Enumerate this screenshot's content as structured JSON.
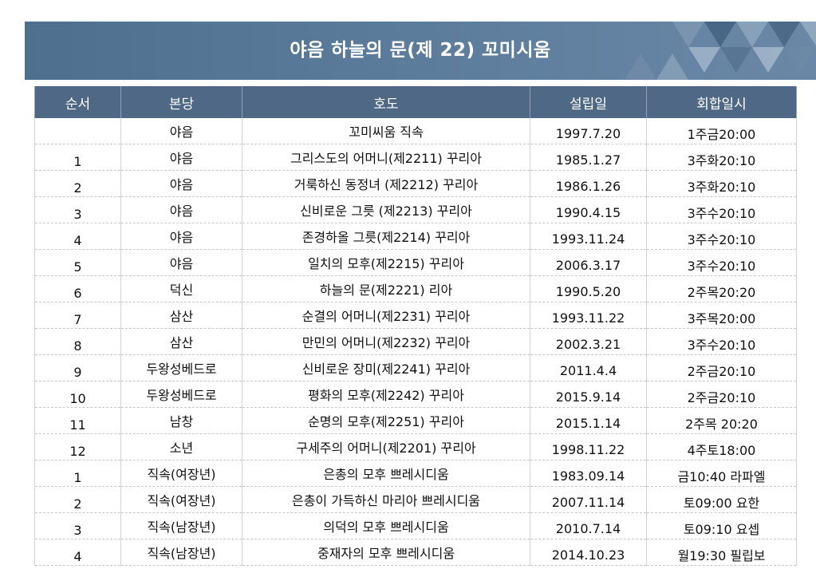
{
  "banner": {
    "title": "야음 하늘의 문(제 22) 꼬미시움"
  },
  "table": {
    "headers": [
      "순서",
      "본당",
      "호도",
      "설립일",
      "회합일시"
    ],
    "rows": [
      {
        "no": "",
        "parish": "야음",
        "name": "꼬미씨움 직속",
        "founded": "1997.7.20",
        "meeting": "1주금20:00"
      },
      {
        "no": "1",
        "parish": "야음",
        "name": "그리스도의 어머니(제2211) 꾸리아",
        "founded": "1985.1.27",
        "meeting": "3주화20:10"
      },
      {
        "no": "2",
        "parish": "야음",
        "name": "거룩하신 동정녀 (제2212) 꾸리아",
        "founded": "1986.1.26",
        "meeting": "3주화20:10"
      },
      {
        "no": "3",
        "parish": "야음",
        "name": "신비로운 그릇 (제2213) 꾸리아",
        "founded": "1990.4.15",
        "meeting": "3주수20:10"
      },
      {
        "no": "4",
        "parish": "야음",
        "name": "존경하올 그릇(제2214) 꾸리아",
        "founded": "1993.11.24",
        "meeting": "3주수20:10"
      },
      {
        "no": "5",
        "parish": "야음",
        "name": "일치의 모후(제2215)  꾸리아",
        "founded": "2006.3.17",
        "meeting": "3주수20:10"
      },
      {
        "no": "6",
        "parish": "덕신",
        "name": "하늘의 문(제2221)  리아",
        "founded": "1990.5.20",
        "meeting": "2주목20:20"
      },
      {
        "no": "7",
        "parish": "삼산",
        "name": "순결의 어머니(제2231) 꾸리아",
        "founded": "1993.11.22",
        "meeting": "3주목20:00"
      },
      {
        "no": "8",
        "parish": "삼산",
        "name": "만민의 어머니(제2232) 꾸리아",
        "founded": "2002.3.21",
        "meeting": "3주수20:10"
      },
      {
        "no": "9",
        "parish": "두왕성베드로",
        "name": "신비로운 장미(제2241) 꾸리아",
        "founded": "2011.4.4",
        "meeting": "2주금20:10"
      },
      {
        "no": "10",
        "parish": "두왕성베드로",
        "name": "평화의 모후(제2242) 꾸리아",
        "founded": "2015.9.14",
        "meeting": "2주금20:10"
      },
      {
        "no": "11",
        "parish": "남창",
        "name": "순명의 모후(제2251) 꾸리아",
        "founded": "2015.1.14",
        "meeting": "2주목 20:20"
      },
      {
        "no": "12",
        "parish": "소년",
        "name": "구세주의 어머니(제2201) 꾸리아",
        "founded": "1998.11.22",
        "meeting": "4주토18:00"
      },
      {
        "no": "1",
        "parish": "직속(여장년)",
        "name": "은총의 모후 쁘레시디움",
        "founded": "1983.09.14",
        "meeting": "금10:40 라파엘"
      },
      {
        "no": "2",
        "parish": "직속(여장년)",
        "name": "은총이 가득하신 마리아 쁘레시디움",
        "founded": "2007.11.14",
        "meeting": "토09:00 요한"
      },
      {
        "no": "3",
        "parish": "직속(남장년)",
        "name": "의덕의 모후 쁘레시디움",
        "founded": "2010.7.14",
        "meeting": "토09:10 요셉"
      },
      {
        "no": "4",
        "parish": "직속(남장년)",
        "name": "중재자의 모후 쁘레시디움",
        "founded": "2014.10.23",
        "meeting": "월19:30 필립보"
      }
    ]
  }
}
